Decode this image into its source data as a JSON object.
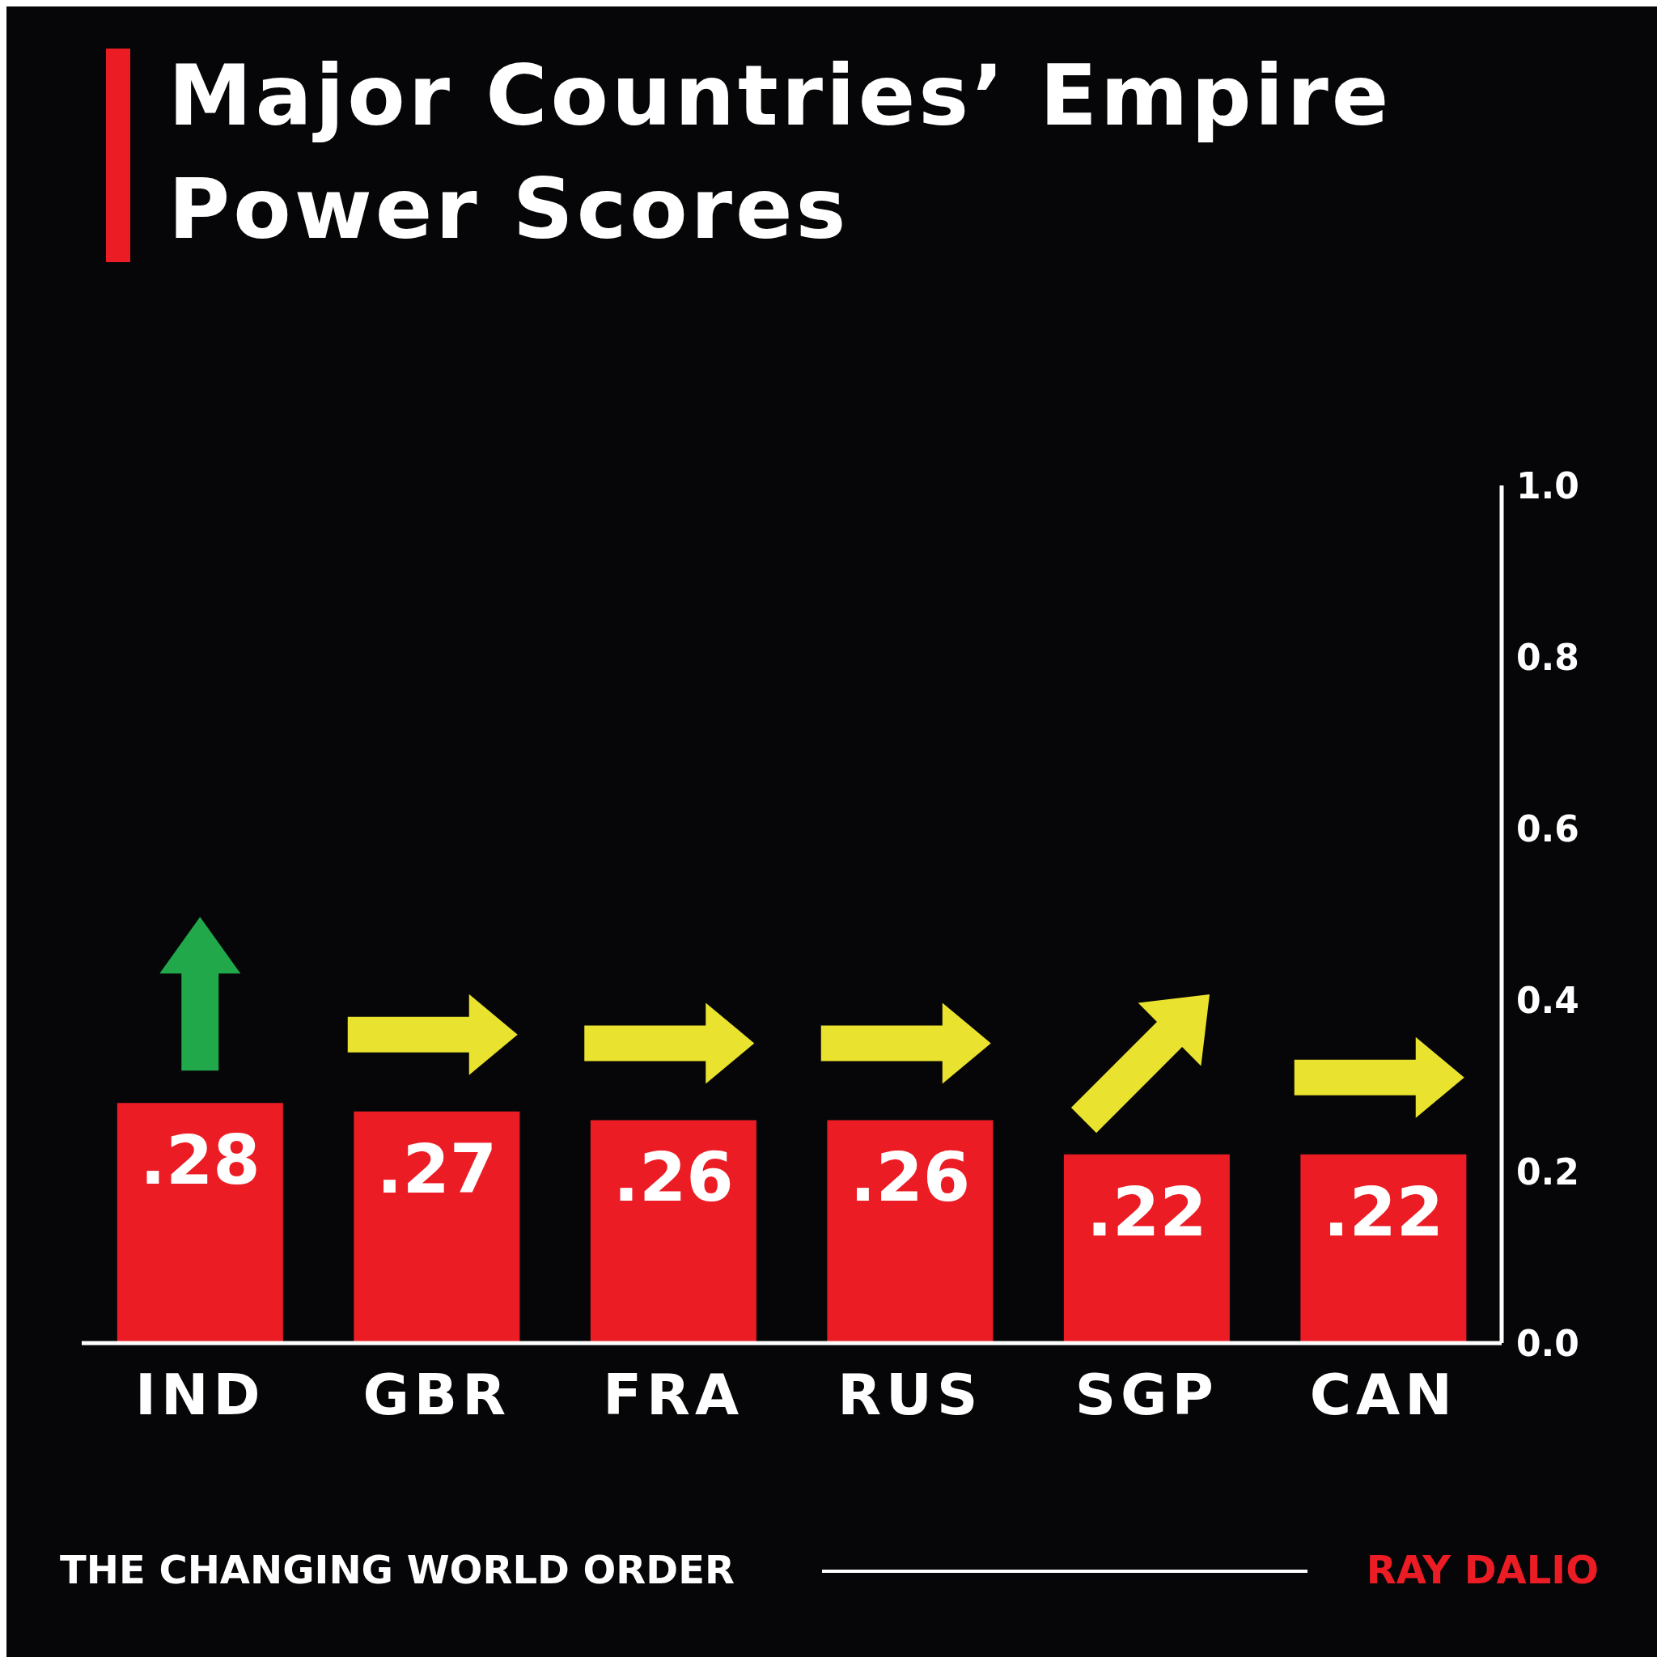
{
  "chart_data": {
    "type": "bar",
    "title": "Major Countries’ Empire Power Scores",
    "categories": [
      "IND",
      "GBR",
      "FRA",
      "RUS",
      "SGP",
      "CAN"
    ],
    "values": [
      0.28,
      0.27,
      0.26,
      0.26,
      0.22,
      0.22
    ],
    "value_labels": [
      ".28",
      ".27",
      ".26",
      ".26",
      ".22",
      ".22"
    ],
    "color": "#ec1c24",
    "ylim": [
      0,
      1
    ],
    "yticks": [
      {
        "value": 0,
        "label": "0.0"
      },
      0.2,
      0.4,
      0.6,
      0.8,
      {
        "value": 1,
        "label": "1.0"
      }
    ],
    "annotations": [
      "THE CHANGING WORLD ORDER",
      "RAY DALIO"
    ]
  }
}
